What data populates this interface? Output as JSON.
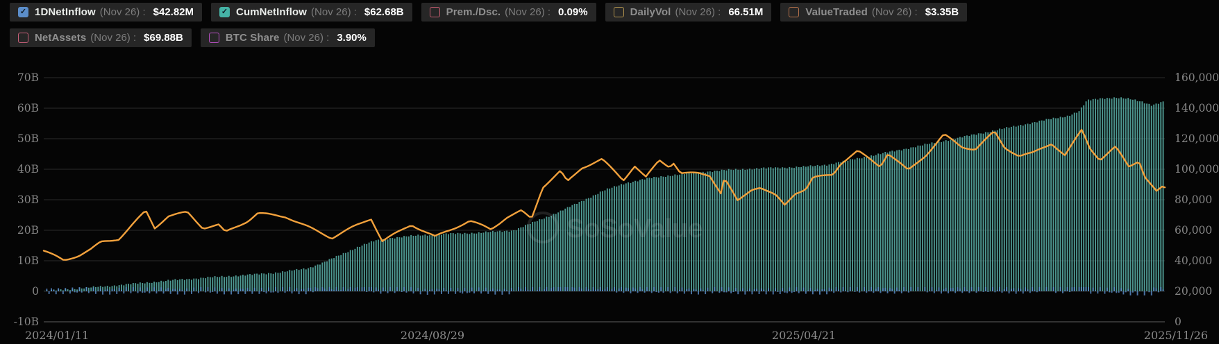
{
  "page": {
    "background": "#050505",
    "watermark": "SoSoValue"
  },
  "legend": {
    "date": "Nov 26",
    "rows": [
      [
        {
          "name": "1DNetInflow",
          "value": "$42.82M",
          "checked": true,
          "color": "#5b8dc9"
        },
        {
          "name": "CumNetInflow",
          "value": "$62.68B",
          "checked": true,
          "color": "#45b3a6"
        },
        {
          "name": "Prem./Dsc.",
          "value": "0.09%",
          "checked": false,
          "color": "#c25b6e"
        },
        {
          "name": "DailyVol",
          "value": "66.51M",
          "checked": false,
          "color": "#b0914d"
        },
        {
          "name": "ValueTraded",
          "value": "$3.35B",
          "checked": false,
          "color": "#b5714a"
        }
      ],
      [
        {
          "name": "NetAssets",
          "value": "$69.88B",
          "checked": false,
          "color": "#c9607a"
        },
        {
          "name": "BTC Share",
          "value": "3.90%",
          "checked": false,
          "color": "#ba50c5"
        }
      ]
    ]
  },
  "chart": {
    "left_axis_ticks": [
      "70B",
      "60B",
      "50B",
      "40B",
      "30B",
      "20B",
      "10B",
      "0",
      "-10B"
    ],
    "right_axis_ticks": [
      "160,000",
      "140,000",
      "120,000",
      "100,000",
      "80,000",
      "60,000",
      "40,000",
      "20,000",
      "0"
    ],
    "x_axis_ticks": [
      "2024/01/11",
      "2024/08/29",
      "2025/04/21",
      "2025/11/26"
    ],
    "colors": {
      "bar_teal": "#54a49c",
      "bar_blue_1d": "#5d8fd0",
      "line_orange": "#f2a13c",
      "grid": "#2c2c2c",
      "axis_line": "#606060",
      "tick_text": "#868686"
    }
  },
  "chart_data": {
    "type": "combo (bar + line)",
    "x_range": [
      "2024/01/11",
      "2025/11/26"
    ],
    "left_axis": {
      "unit": "USD billions",
      "min": -10,
      "max": 70,
      "step": 10
    },
    "right_axis": {
      "unit": "USD",
      "min": 0,
      "max": 160000,
      "step": 20000
    },
    "legend_position": "top-left chips",
    "grid": "horizontal only",
    "series": [
      {
        "name": "CumNetInflow",
        "type": "bar",
        "axis": "left",
        "unit": "billions USD",
        "latest_label": "$62.68B",
        "color": "#54a49c",
        "keypoints_frac_value": [
          [
            0.0,
            0.1
          ],
          [
            0.03,
            0.9
          ],
          [
            0.06,
            1.8
          ],
          [
            0.09,
            2.8
          ],
          [
            0.12,
            3.8
          ],
          [
            0.15,
            4.6
          ],
          [
            0.18,
            5.3
          ],
          [
            0.21,
            6.2
          ],
          [
            0.235,
            7.5
          ],
          [
            0.25,
            9.5
          ],
          [
            0.265,
            12.0
          ],
          [
            0.28,
            14.5
          ],
          [
            0.295,
            16.5
          ],
          [
            0.31,
            17.5
          ],
          [
            0.337,
            18.4
          ],
          [
            0.36,
            18.8
          ],
          [
            0.39,
            19.2
          ],
          [
            0.42,
            20.0
          ],
          [
            0.44,
            23.0
          ],
          [
            0.46,
            26.0
          ],
          [
            0.48,
            29.5
          ],
          [
            0.5,
            33.0
          ],
          [
            0.52,
            35.5
          ],
          [
            0.54,
            37.0
          ],
          [
            0.56,
            38.0
          ],
          [
            0.6,
            39.5
          ],
          [
            0.64,
            40.3
          ],
          [
            0.68,
            40.8
          ],
          [
            0.7,
            41.5
          ],
          [
            0.72,
            43.0
          ],
          [
            0.74,
            44.5
          ],
          [
            0.76,
            46.0
          ],
          [
            0.78,
            47.5
          ],
          [
            0.8,
            49.0
          ],
          [
            0.82,
            50.5
          ],
          [
            0.84,
            52.0
          ],
          [
            0.86,
            53.5
          ],
          [
            0.88,
            55.0
          ],
          [
            0.9,
            56.5
          ],
          [
            0.915,
            57.5
          ],
          [
            0.925,
            59.0
          ],
          [
            0.932,
            62.5
          ],
          [
            0.945,
            63.3
          ],
          [
            0.958,
            63.4
          ],
          [
            0.97,
            63.0
          ],
          [
            0.98,
            62.3
          ],
          [
            0.99,
            61.0
          ],
          [
            1.0,
            62.0
          ]
        ]
      },
      {
        "name": "1DNetInflow",
        "type": "bar",
        "axis": "left",
        "unit": "USD",
        "latest_label": "$42.82M",
        "color": "#5d8fd0",
        "note": "tiny daily bars hugging the zero line, rendered as day-over-day delta of CumNetInflow"
      },
      {
        "name": "price-line",
        "type": "line",
        "axis": "right",
        "unit": "USD",
        "color": "#f2a13c",
        "note": "unlabeled orange line plotted against the right 0-160,000 axis",
        "keypoints_frac_value": [
          [
            0.0,
            46600
          ],
          [
            0.018,
            39900
          ],
          [
            0.031,
            43100
          ],
          [
            0.042,
            47100
          ],
          [
            0.051,
            52000
          ],
          [
            0.067,
            54500
          ],
          [
            0.079,
            63800
          ],
          [
            0.091,
            73100
          ],
          [
            0.099,
            61900
          ],
          [
            0.111,
            69500
          ],
          [
            0.128,
            71600
          ],
          [
            0.142,
            61200
          ],
          [
            0.156,
            63100
          ],
          [
            0.162,
            58300
          ],
          [
            0.182,
            66200
          ],
          [
            0.191,
            71400
          ],
          [
            0.216,
            69300
          ],
          [
            0.241,
            60300
          ],
          [
            0.257,
            54700
          ],
          [
            0.292,
            67600
          ],
          [
            0.302,
            53000
          ],
          [
            0.328,
            64100
          ],
          [
            0.349,
            55900
          ],
          [
            0.38,
            65800
          ],
          [
            0.399,
            60300
          ],
          [
            0.413,
            68400
          ],
          [
            0.426,
            72700
          ],
          [
            0.435,
            67800
          ],
          [
            0.445,
            88700
          ],
          [
            0.461,
            99000
          ],
          [
            0.467,
            91900
          ],
          [
            0.48,
            101000
          ],
          [
            0.498,
            106100
          ],
          [
            0.517,
            92600
          ],
          [
            0.527,
            102100
          ],
          [
            0.537,
            94500
          ],
          [
            0.549,
            106100
          ],
          [
            0.558,
            102100
          ],
          [
            0.562,
            104700
          ],
          [
            0.568,
            97800
          ],
          [
            0.584,
            97500
          ],
          [
            0.594,
            96100
          ],
          [
            0.604,
            84300
          ],
          [
            0.607,
            94200
          ],
          [
            0.619,
            78500
          ],
          [
            0.632,
            86800
          ],
          [
            0.639,
            88000
          ],
          [
            0.653,
            82500
          ],
          [
            0.661,
            76300
          ],
          [
            0.67,
            84500
          ],
          [
            0.68,
            87500
          ],
          [
            0.686,
            94700
          ],
          [
            0.704,
            96800
          ],
          [
            0.711,
            104100
          ],
          [
            0.726,
            111700
          ],
          [
            0.746,
            101600
          ],
          [
            0.753,
            110200
          ],
          [
            0.771,
            99000
          ],
          [
            0.787,
            109600
          ],
          [
            0.803,
            123000
          ],
          [
            0.819,
            115000
          ],
          [
            0.831,
            113200
          ],
          [
            0.848,
            124400
          ],
          [
            0.857,
            114000
          ],
          [
            0.87,
            108400
          ],
          [
            0.882,
            110200
          ],
          [
            0.899,
            117100
          ],
          [
            0.911,
            109300
          ],
          [
            0.926,
            126200
          ],
          [
            0.933,
            114500
          ],
          [
            0.942,
            106500
          ],
          [
            0.956,
            114500
          ],
          [
            0.968,
            101500
          ],
          [
            0.977,
            105500
          ],
          [
            0.982,
            95000
          ],
          [
            0.993,
            84500
          ],
          [
            0.997,
            87800
          ],
          [
            1.0,
            87300
          ]
        ]
      }
    ]
  }
}
